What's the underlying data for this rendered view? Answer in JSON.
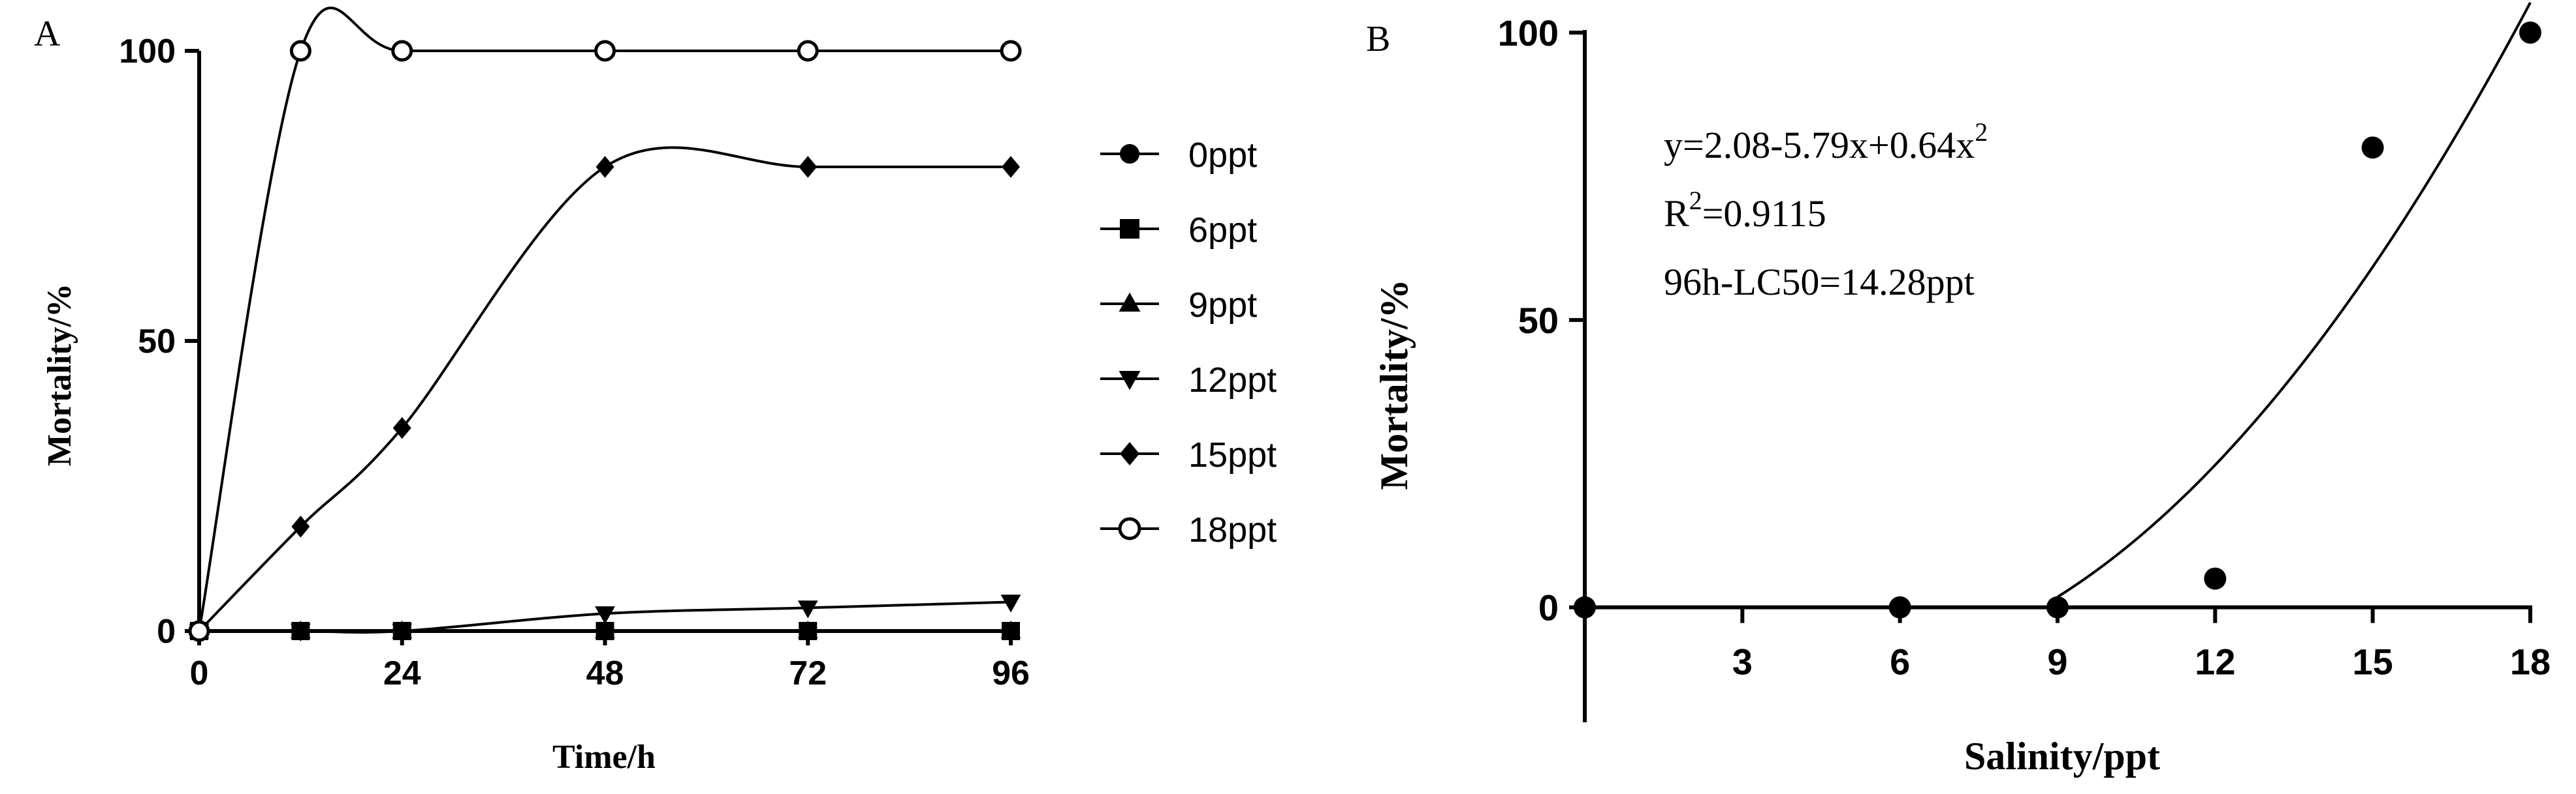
{
  "chart_data": [
    {
      "panel_label": "A",
      "type": "line",
      "xlabel": "Time/h",
      "ylabel": "Mortality/%",
      "xlim": [
        0,
        96
      ],
      "ylim": [
        0,
        100
      ],
      "x_ticks": [
        "0",
        "24",
        "48",
        "72",
        "96"
      ],
      "y_ticks": [
        "0",
        "50",
        "100"
      ],
      "legend_position": "right",
      "series": [
        {
          "name": "0ppt",
          "marker": "circle-filled",
          "x": [
            0,
            12,
            24,
            48,
            72,
            96
          ],
          "y": [
            0,
            0,
            0,
            0,
            0,
            0
          ]
        },
        {
          "name": "6ppt",
          "marker": "square-filled",
          "x": [
            0,
            12,
            24,
            48,
            72,
            96
          ],
          "y": [
            0,
            0,
            0,
            0,
            0,
            0
          ]
        },
        {
          "name": "9ppt",
          "marker": "triangle-up-filled",
          "x": [
            0,
            12,
            24,
            48,
            72,
            96
          ],
          "y": [
            0,
            0,
            0,
            0,
            0,
            0
          ]
        },
        {
          "name": "12ppt",
          "marker": "triangle-down-filled",
          "x": [
            0,
            12,
            24,
            48,
            72,
            96
          ],
          "y": [
            0,
            0,
            0,
            3,
            4,
            5
          ]
        },
        {
          "name": "15ppt",
          "marker": "diamond-filled",
          "x": [
            0,
            12,
            24,
            48,
            72,
            96
          ],
          "y": [
            0,
            18,
            35,
            80,
            80,
            80
          ]
        },
        {
          "name": "18ppt",
          "marker": "circle-open",
          "x": [
            0,
            12,
            24,
            48,
            72,
            96
          ],
          "y": [
            0,
            100,
            100,
            100,
            100,
            100
          ]
        }
      ]
    },
    {
      "panel_label": "B",
      "type": "scatter",
      "xlabel": "Salinity/ppt",
      "ylabel": "Mortality/%",
      "xlim": [
        0,
        18
      ],
      "ylim": [
        -20,
        100
      ],
      "x_ticks": [
        "3",
        "6",
        "9",
        "12",
        "15",
        "18"
      ],
      "y_ticks": [
        "0",
        "50",
        "100"
      ],
      "points": {
        "x": [
          0,
          6,
          9,
          12,
          15,
          18
        ],
        "y": [
          0,
          0,
          0,
          5,
          80,
          100
        ]
      },
      "fit": {
        "type": "quadratic",
        "a": 2.08,
        "b": -5.79,
        "c": 0.64,
        "x_range": [
          9,
          18
        ]
      },
      "annotations": [
        {
          "main": "y=2.08-5.79x+0.64x",
          "sup": "2",
          "after": ""
        },
        {
          "main": "R",
          "sup": "2",
          "after": "=0.9115"
        },
        {
          "main": "96h-LC50=14.28ppt",
          "sup": "",
          "after": ""
        }
      ]
    }
  ]
}
